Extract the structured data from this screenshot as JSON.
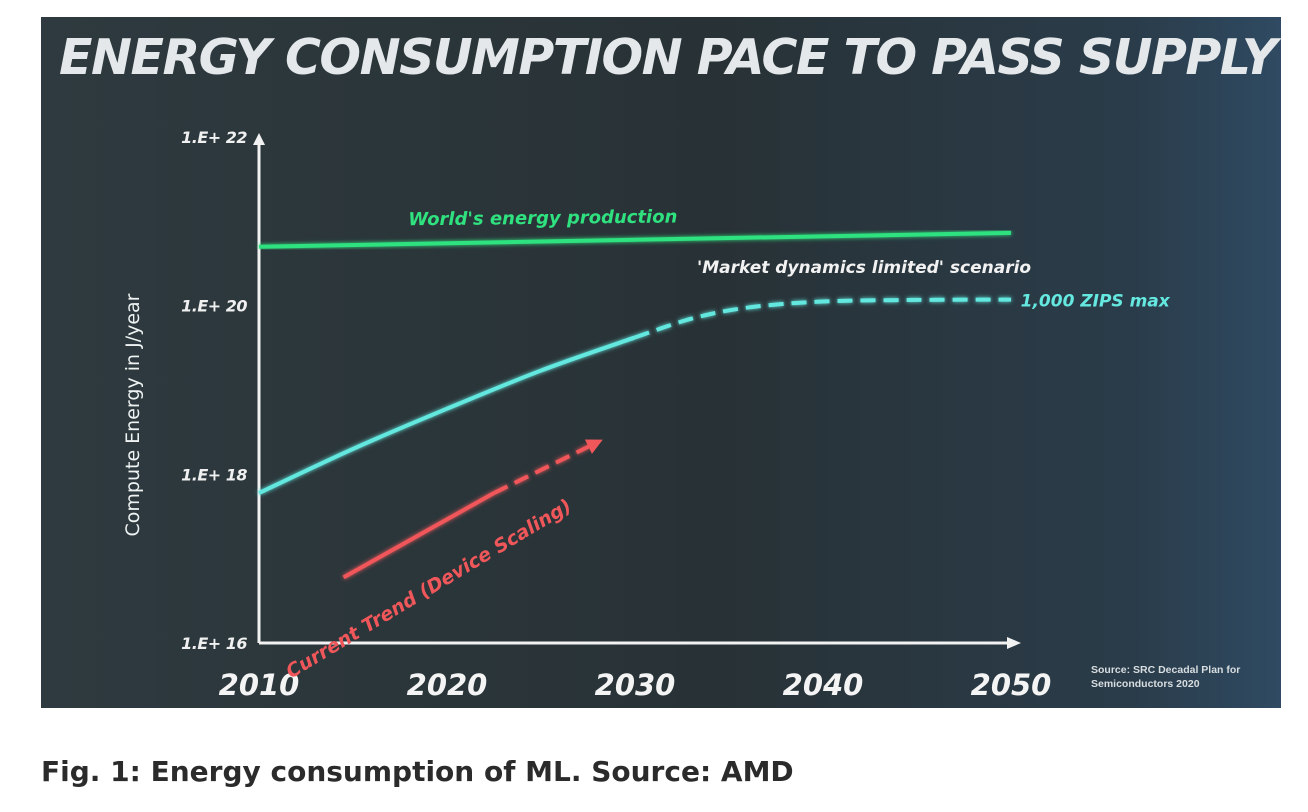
{
  "caption": "Fig. 1: Energy consumption of ML. Source: AMD",
  "source_note": "Source: SRC Decadal Plan for Semiconductors 2020",
  "colors": {
    "world": "#2fe27f",
    "market": "#64e8e0",
    "trend": "#f0575a",
    "axis": "#f2f2f2"
  },
  "chart_data": {
    "type": "line",
    "title": "ENERGY CONSUMPTION PACE TO PASS SUPPLY",
    "xlabel": "",
    "ylabel": "Compute Energy in J/year",
    "yscale": "log",
    "xlim": [
      2010,
      2050
    ],
    "ylim": [
      1e+16,
      1e+22
    ],
    "x_ticks": [
      2010,
      2020,
      2030,
      2040,
      2050
    ],
    "x_tick_labels": [
      "2010",
      "2020",
      "2030",
      "2040",
      "2050"
    ],
    "y_ticks": [
      1e+16,
      1e+18,
      1e+20,
      1e+22
    ],
    "y_tick_labels": [
      "1.E+ 16",
      "1.E+ 18",
      "1.E+ 20",
      "1.E+ 22"
    ],
    "series": [
      {
        "name": "World's energy production",
        "color": "#2fe27f",
        "style": "solid",
        "x": [
          2010,
          2050
        ],
        "y": [
          5e+20,
          7.3e+20
        ]
      },
      {
        "name": "'Market dynamics limited' scenario",
        "color": "#64e8e0",
        "style": "solid",
        "x": [
          2010,
          2015,
          2020,
          2025,
          2030
        ],
        "y": [
          6e+17,
          2e+18,
          6e+18,
          1.7e+19,
          4.2e+19
        ]
      },
      {
        "name": "",
        "color": "#64e8e0",
        "style": "dashed",
        "x": [
          2030,
          2033,
          2036,
          2040,
          2045,
          2050
        ],
        "y": [
          4.2e+19,
          7e+19,
          9.5e+19,
          1.12e+20,
          1.17e+20,
          1.18e+20
        ]
      },
      {
        "name": "Current Trend (Device Scaling)",
        "color": "#f0575a",
        "style": "solid",
        "x": [
          2014.5,
          2022.5
        ],
        "y": [
          6e+16,
          6e+17
        ]
      },
      {
        "name": "",
        "color": "#f0575a",
        "style": "dashed-arrow",
        "x": [
          2022.5,
          2028
        ],
        "y": [
          6e+17,
          2.4e+18
        ]
      }
    ],
    "annotations": [
      {
        "text": "1,000 ZIPS max",
        "x": 2050.3,
        "y": 1.18e+20
      }
    ]
  }
}
